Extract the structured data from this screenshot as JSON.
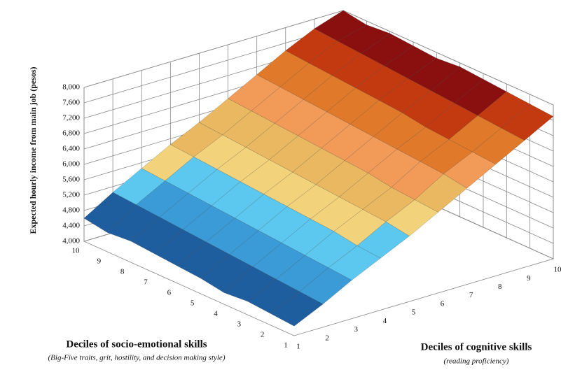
{
  "chart_data": {
    "type": "surface",
    "zlabel": "Expected hourly income from main job (pesos)",
    "se_axis": {
      "title": "Deciles of socio-emotional skills",
      "subtitle": "(Big-Five traits, grit, hostility, and decision making style)",
      "categories": [
        "1",
        "2",
        "3",
        "4",
        "5",
        "6",
        "7",
        "8",
        "9",
        "10"
      ]
    },
    "cog_axis": {
      "title": "Deciles of cognitive skills",
      "subtitle": "(reading proficiency)",
      "categories": [
        "1",
        "2",
        "3",
        "4",
        "5",
        "6",
        "7",
        "8",
        "9",
        "10"
      ]
    },
    "z": [
      [
        4250,
        4600,
        5000,
        5350,
        5700,
        6100,
        6500,
        6900,
        7300,
        7700
      ],
      [
        4300,
        4650,
        5050,
        5400,
        5800,
        6150,
        6600,
        6950,
        7350,
        7750
      ],
      [
        4350,
        4700,
        5100,
        5500,
        5850,
        6200,
        6650,
        7000,
        7400,
        7800
      ],
      [
        4300,
        4750,
        5150,
        5550,
        5900,
        6300,
        6700,
        7050,
        7450,
        7850
      ],
      [
        4400,
        4800,
        5200,
        5600,
        5950,
        6350,
        6750,
        7150,
        7500,
        7900
      ],
      [
        4450,
        4850,
        5250,
        5650,
        6000,
        6400,
        6800,
        7200,
        7550,
        7850
      ],
      [
        4500,
        4900,
        5300,
        5700,
        6050,
        6450,
        6850,
        7250,
        7600,
        7900
      ],
      [
        4550,
        4950,
        5350,
        5750,
        6100,
        6500,
        6900,
        7300,
        7650,
        7950
      ],
      [
        4500,
        5000,
        5400,
        5800,
        6150,
        6550,
        6950,
        7350,
        7700,
        7900
      ],
      [
        4600,
        5050,
        5450,
        5850,
        6200,
        6600,
        7000,
        7400,
        7750,
        8000
      ]
    ],
    "zlim": [
      4000,
      8000
    ],
    "zticks": [
      {
        "value": 4000,
        "label": "4,000"
      },
      {
        "value": 4400,
        "label": "4,400"
      },
      {
        "value": 4800,
        "label": "4,800"
      },
      {
        "value": 5200,
        "label": "5,200"
      },
      {
        "value": 5600,
        "label": "5,600"
      },
      {
        "value": 6000,
        "label": "6,000"
      },
      {
        "value": 6400,
        "label": "6,400"
      },
      {
        "value": 6800,
        "label": "6,800"
      },
      {
        "value": 7200,
        "label": "7,200"
      },
      {
        "value": 7600,
        "label": "7,600"
      },
      {
        "value": 8000,
        "label": "8,000"
      }
    ],
    "colors": [
      "#0e2552",
      "#1f5e9e",
      "#3a9bd6",
      "#5cc7ef",
      "#f2d27a",
      "#e9b860",
      "#f29a58",
      "#e07a2a",
      "#c43a10",
      "#8a1010"
    ],
    "grid": true
  }
}
